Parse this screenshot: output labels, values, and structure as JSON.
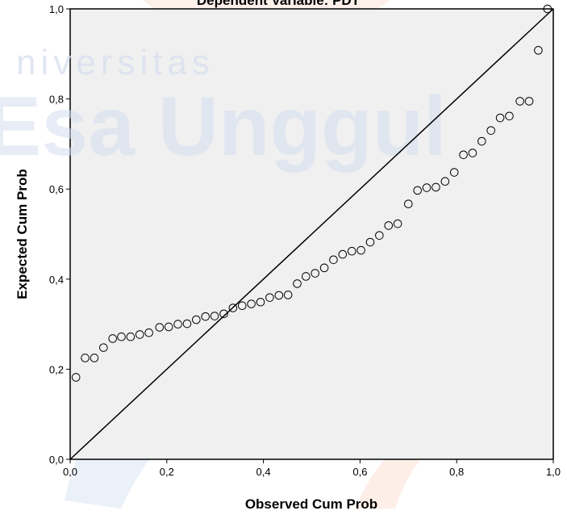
{
  "watermark": {
    "line1": "niversitas",
    "line2": "Esa Unggul",
    "colors": [
      "#dce4f2",
      "#f7d9cf"
    ]
  },
  "chart_data": {
    "type": "scatter",
    "title": "Dependent Variable: PDT",
    "xlabel": "Observed Cum Prob",
    "ylabel": "Expected Cum Prob",
    "xlim": [
      0,
      1
    ],
    "ylim": [
      0,
      1
    ],
    "xticks": [
      "0,0",
      "0,2",
      "0,4",
      "0,6",
      "0,8",
      "1,0"
    ],
    "yticks": [
      "0,0",
      "0,2",
      "0,4",
      "0,6",
      "0,8",
      "1,0"
    ],
    "reference_line": {
      "from": [
        0,
        0
      ],
      "to": [
        1,
        1
      ]
    },
    "grid": false,
    "plot_background": "#f0f0f0",
    "marker": "open-circle",
    "points": [
      [
        0.012,
        0.182
      ],
      [
        0.031,
        0.225
      ],
      [
        0.05,
        0.225
      ],
      [
        0.069,
        0.248
      ],
      [
        0.088,
        0.268
      ],
      [
        0.106,
        0.272
      ],
      [
        0.125,
        0.272
      ],
      [
        0.144,
        0.277
      ],
      [
        0.163,
        0.281
      ],
      [
        0.185,
        0.293
      ],
      [
        0.204,
        0.294
      ],
      [
        0.223,
        0.3
      ],
      [
        0.242,
        0.301
      ],
      [
        0.261,
        0.31
      ],
      [
        0.28,
        0.317
      ],
      [
        0.299,
        0.318
      ],
      [
        0.318,
        0.323
      ],
      [
        0.337,
        0.336
      ],
      [
        0.356,
        0.341
      ],
      [
        0.375,
        0.345
      ],
      [
        0.394,
        0.349
      ],
      [
        0.413,
        0.359
      ],
      [
        0.432,
        0.364
      ],
      [
        0.451,
        0.365
      ],
      [
        0.47,
        0.39
      ],
      [
        0.488,
        0.406
      ],
      [
        0.507,
        0.413
      ],
      [
        0.526,
        0.425
      ],
      [
        0.545,
        0.443
      ],
      [
        0.564,
        0.455
      ],
      [
        0.583,
        0.462
      ],
      [
        0.602,
        0.464
      ],
      [
        0.621,
        0.482
      ],
      [
        0.64,
        0.497
      ],
      [
        0.659,
        0.519
      ],
      [
        0.678,
        0.523
      ],
      [
        0.7,
        0.567
      ],
      [
        0.719,
        0.597
      ],
      [
        0.738,
        0.603
      ],
      [
        0.757,
        0.604
      ],
      [
        0.776,
        0.617
      ],
      [
        0.795,
        0.637
      ],
      [
        0.814,
        0.676
      ],
      [
        0.833,
        0.68
      ],
      [
        0.852,
        0.706
      ],
      [
        0.871,
        0.73
      ],
      [
        0.89,
        0.758
      ],
      [
        0.909,
        0.762
      ],
      [
        0.931,
        0.795
      ],
      [
        0.95,
        0.795
      ],
      [
        0.969,
        0.908
      ],
      [
        0.988,
        1.0
      ]
    ]
  }
}
